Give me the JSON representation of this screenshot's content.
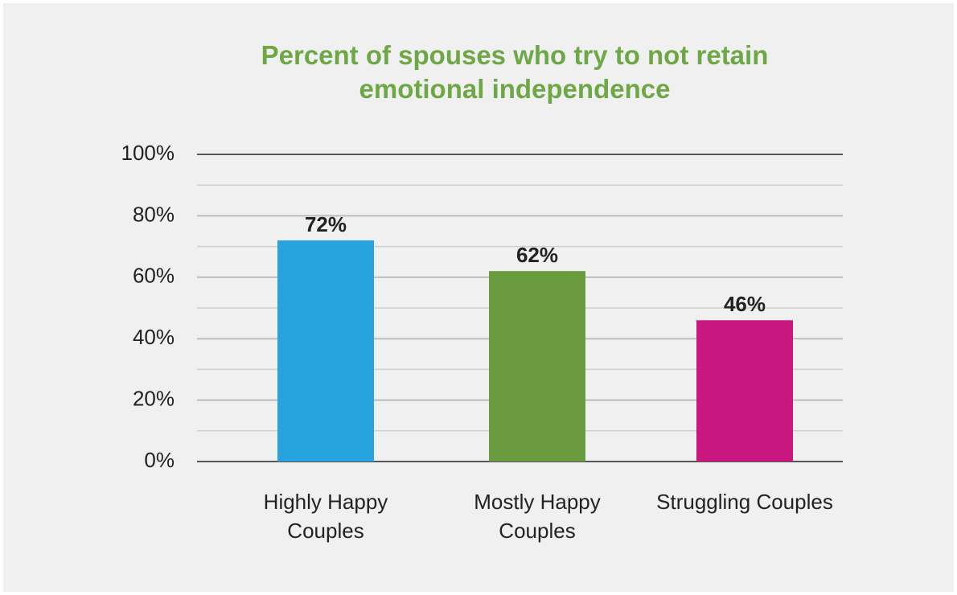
{
  "chart_data": {
    "type": "bar",
    "title": "Percent of spouses who try to not retain emotional independence",
    "categories": [
      "Highly Happy Couples",
      "Mostly Happy Couples",
      "Struggling Couples"
    ],
    "values": [
      72,
      62,
      46
    ],
    "value_labels": [
      "72%",
      "62%",
      "46%"
    ],
    "colors": [
      "#29a3e0",
      "#6a9c3f",
      "#c8187f"
    ],
    "ylim": [
      0,
      100
    ],
    "yticks": [
      {
        "value": 0,
        "label": "0%"
      },
      {
        "value": 20,
        "label": "20%"
      },
      {
        "value": 40,
        "label": "40%"
      },
      {
        "value": 60,
        "label": "60%"
      },
      {
        "value": 80,
        "label": "80%"
      },
      {
        "value": 100,
        "label": "100%"
      }
    ],
    "yminor": [
      10,
      30,
      50,
      70,
      90
    ],
    "grid": true
  }
}
